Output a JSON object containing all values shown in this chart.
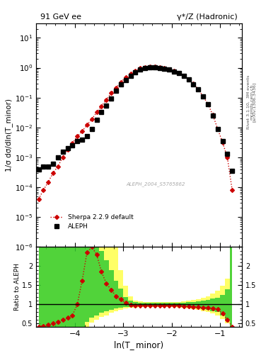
{
  "title_left": "91 GeV ee",
  "title_right": "γ*/Z (Hadronic)",
  "ylabel_main": "1/σ dσ/dln(T_minor)",
  "ylabel_ratio": "Ratio to ALEPH",
  "xlabel": "ln(T_ minor)",
  "right_label": "Rivet 3.1.10,  3M events",
  "arxiv_label": "[arXiv:1306.3436]",
  "mcplots_label": "mcplots.cern.ch",
  "analysis_label": "ALEPH_2004_S5765862",
  "xlim": [
    -4.8,
    -0.55
  ],
  "ylim_main": [
    1e-06,
    30
  ],
  "ylim_ratio": [
    0.42,
    2.5
  ],
  "data_x": [
    -4.75,
    -4.65,
    -4.55,
    -4.45,
    -4.35,
    -4.25,
    -4.15,
    -4.05,
    -3.95,
    -3.85,
    -3.75,
    -3.65,
    -3.55,
    -3.45,
    -3.35,
    -3.25,
    -3.15,
    -3.05,
    -2.95,
    -2.85,
    -2.75,
    -2.65,
    -2.55,
    -2.45,
    -2.35,
    -2.25,
    -2.15,
    -2.05,
    -1.95,
    -1.85,
    -1.75,
    -1.65,
    -1.55,
    -1.45,
    -1.35,
    -1.25,
    -1.15,
    -1.05,
    -0.95,
    -0.85,
    -0.75
  ],
  "data_y": [
    0.0004,
    0.0005,
    0.0005,
    0.0006,
    0.001,
    0.0015,
    0.002,
    0.0025,
    0.0035,
    0.004,
    0.005,
    0.009,
    0.018,
    0.032,
    0.055,
    0.095,
    0.17,
    0.27,
    0.39,
    0.53,
    0.7,
    0.86,
    1.0,
    1.04,
    1.04,
    0.99,
    0.93,
    0.86,
    0.76,
    0.66,
    0.53,
    0.4,
    0.28,
    0.185,
    0.11,
    0.06,
    0.025,
    0.009,
    0.0035,
    0.0013,
    0.00035
  ],
  "mc_x": [
    -4.75,
    -4.65,
    -4.55,
    -4.45,
    -4.35,
    -4.25,
    -4.15,
    -4.05,
    -3.95,
    -3.85,
    -3.75,
    -3.65,
    -3.55,
    -3.45,
    -3.35,
    -3.25,
    -3.15,
    -3.05,
    -2.95,
    -2.85,
    -2.75,
    -2.65,
    -2.55,
    -2.45,
    -2.35,
    -2.25,
    -2.15,
    -2.05,
    -1.95,
    -1.85,
    -1.75,
    -1.65,
    -1.55,
    -1.45,
    -1.35,
    -1.25,
    -1.15,
    -1.05,
    -0.95,
    -0.85,
    -0.75
  ],
  "mc_y": [
    4e-05,
    8e-05,
    0.00015,
    0.0003,
    0.0005,
    0.001,
    0.0018,
    0.003,
    0.005,
    0.0075,
    0.012,
    0.019,
    0.032,
    0.052,
    0.085,
    0.14,
    0.21,
    0.33,
    0.47,
    0.62,
    0.8,
    0.95,
    1.04,
    1.07,
    1.06,
    1.01,
    0.95,
    0.87,
    0.77,
    0.66,
    0.54,
    0.41,
    0.29,
    0.19,
    0.11,
    0.06,
    0.026,
    0.009,
    0.0032,
    0.001,
    8e-05
  ],
  "ratio_y": [
    0.42,
    0.44,
    0.47,
    0.5,
    0.55,
    0.6,
    0.65,
    0.72,
    1.0,
    1.62,
    2.35,
    2.5,
    2.3,
    1.85,
    1.55,
    1.38,
    1.22,
    1.13,
    1.04,
    0.99,
    0.97,
    0.97,
    0.97,
    0.97,
    0.97,
    0.97,
    0.97,
    0.97,
    0.97,
    0.97,
    0.96,
    0.95,
    0.94,
    0.93,
    0.92,
    0.91,
    0.89,
    0.87,
    0.77,
    0.6,
    0.42
  ],
  "band_x": [
    -4.75,
    -4.65,
    -4.55,
    -4.45,
    -4.35,
    -4.25,
    -4.15,
    -4.05,
    -3.95,
    -3.85,
    -3.75,
    -3.65,
    -3.55,
    -3.45,
    -3.35,
    -3.25,
    -3.15,
    -3.05,
    -2.95,
    -2.85,
    -2.75,
    -2.65,
    -2.55,
    -2.45,
    -2.35,
    -2.25,
    -2.15,
    -2.05,
    -1.95,
    -1.85,
    -1.75,
    -1.65,
    -1.55,
    -1.45,
    -1.35,
    -1.25,
    -1.15,
    -1.05,
    -0.95,
    -0.85,
    -0.75
  ],
  "band_green_lo": [
    0.42,
    0.42,
    0.42,
    0.42,
    0.42,
    0.42,
    0.42,
    0.42,
    0.42,
    0.42,
    0.55,
    0.65,
    0.72,
    0.78,
    0.82,
    0.86,
    0.89,
    0.91,
    0.93,
    0.94,
    0.95,
    0.95,
    0.95,
    0.95,
    0.95,
    0.95,
    0.95,
    0.95,
    0.95,
    0.95,
    0.94,
    0.93,
    0.92,
    0.9,
    0.88,
    0.86,
    0.83,
    0.8,
    0.72,
    0.6,
    0.42
  ],
  "band_green_hi": [
    2.5,
    2.5,
    2.5,
    2.5,
    2.5,
    2.5,
    2.5,
    2.5,
    2.5,
    2.5,
    2.5,
    2.5,
    2.5,
    2.4,
    2.15,
    1.9,
    1.62,
    1.42,
    1.2,
    1.1,
    1.06,
    1.05,
    1.04,
    1.04,
    1.04,
    1.04,
    1.04,
    1.04,
    1.04,
    1.04,
    1.05,
    1.06,
    1.07,
    1.08,
    1.1,
    1.12,
    1.15,
    1.18,
    1.25,
    1.4,
    2.5
  ],
  "band_yellow_lo": [
    0.42,
    0.42,
    0.42,
    0.42,
    0.42,
    0.42,
    0.42,
    0.42,
    0.42,
    0.42,
    0.42,
    0.52,
    0.6,
    0.67,
    0.72,
    0.78,
    0.82,
    0.86,
    0.89,
    0.91,
    0.92,
    0.93,
    0.93,
    0.93,
    0.93,
    0.93,
    0.93,
    0.93,
    0.93,
    0.92,
    0.91,
    0.9,
    0.88,
    0.86,
    0.83,
    0.8,
    0.76,
    0.72,
    0.62,
    0.5,
    0.42
  ],
  "band_yellow_hi": [
    2.5,
    2.5,
    2.5,
    2.5,
    2.5,
    2.5,
    2.5,
    2.5,
    2.5,
    2.5,
    2.5,
    2.5,
    2.5,
    2.5,
    2.5,
    2.5,
    2.5,
    1.9,
    1.48,
    1.22,
    1.1,
    1.08,
    1.07,
    1.07,
    1.07,
    1.07,
    1.07,
    1.07,
    1.07,
    1.07,
    1.08,
    1.1,
    1.12,
    1.14,
    1.17,
    1.22,
    1.28,
    1.35,
    1.48,
    1.68,
    2.5
  ],
  "data_color": "#000000",
  "mc_color": "#cc0000",
  "green_color": "#33cc33",
  "yellow_color": "#ffff66",
  "legend_data": "ALEPH",
  "legend_mc": "Sherpa 2.2.9 default",
  "bg_color": "#f8f8f8"
}
